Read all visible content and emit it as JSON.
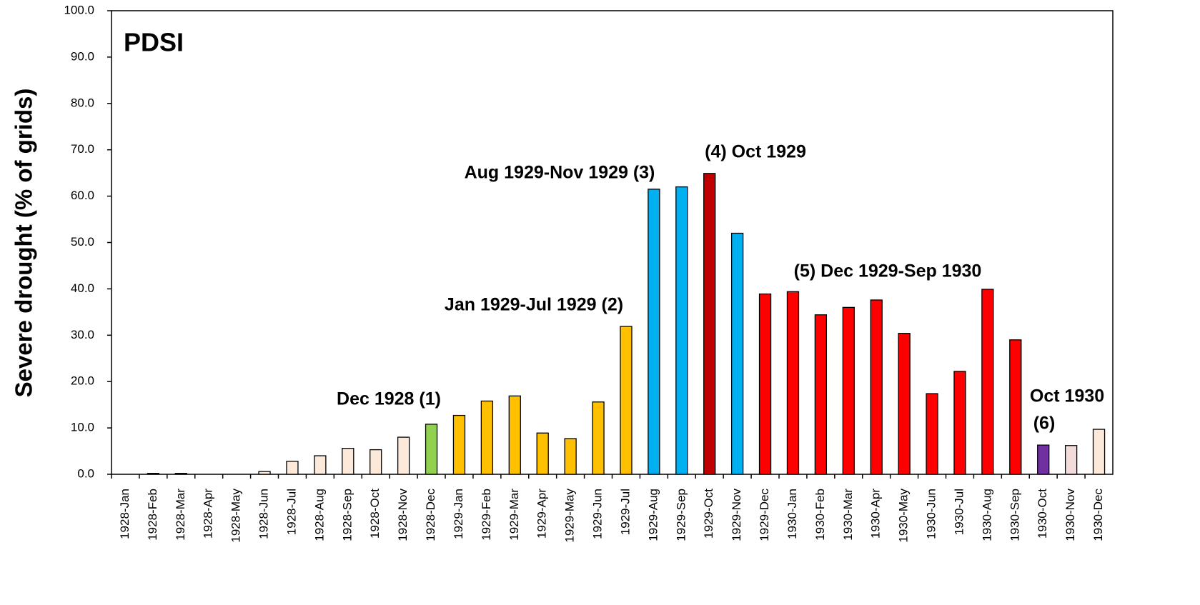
{
  "chart_data": {
    "type": "bar",
    "title": "PDSI",
    "y_label": "Severe drought (% of grids)",
    "categories": [
      "1928-Jan",
      "1928-Feb",
      "1928-Mar",
      "1928-Apr",
      "1928-May",
      "1928-Jun",
      "1928-Jul",
      "1928-Aug",
      "1928-Sep",
      "1928-Oct",
      "1928-Nov",
      "1928-Dec",
      "1929-Jan",
      "1929-Feb",
      "1929-Mar",
      "1929-Apr",
      "1929-May",
      "1929-Jun",
      "1929-Jul",
      "1929-Aug",
      "1929-Sep",
      "1929-Oct",
      "1929-Nov",
      "1929-Dec",
      "1930-Jan",
      "1930-Feb",
      "1930-Mar",
      "1930-Apr",
      "1930-May",
      "1930-Jun",
      "1930-Jul",
      "1930-Aug",
      "1930-Sep",
      "1930-Oct",
      "1930-Nov",
      "1930-Dec"
    ],
    "values": [
      0,
      0.2,
      0.2,
      0,
      0,
      0.6,
      2.8,
      4.0,
      5.6,
      5.3,
      8.0,
      10.8,
      12.7,
      15.8,
      16.9,
      8.9,
      7.7,
      15.6,
      31.9,
      61.5,
      62.0,
      64.9,
      52.0,
      38.9,
      39.4,
      34.4,
      36.0,
      37.6,
      30.4,
      17.4,
      22.2,
      39.9,
      29.0,
      6.3,
      6.2,
      9.7
    ],
    "colors": [
      "#fde9d9",
      "#fde9d9",
      "#fde9d9",
      "#fde9d9",
      "#fde9d9",
      "#fde9d9",
      "#fde9d9",
      "#fde9d9",
      "#fde9d9",
      "#fde9d9",
      "#fde9d9",
      "#92d050",
      "#ffc000",
      "#ffc000",
      "#ffc000",
      "#ffc000",
      "#ffc000",
      "#ffc000",
      "#ffc000",
      "#00b0f0",
      "#00b0f0",
      "#c00000",
      "#00b0f0",
      "#ff0000",
      "#ff0000",
      "#ff0000",
      "#ff0000",
      "#ff0000",
      "#ff0000",
      "#ff0000",
      "#ff0000",
      "#ff0000",
      "#ff0000",
      "#7030a0",
      "#f2dcdb",
      "#fde9d9"
    ],
    "ylim": [
      0,
      100
    ],
    "yticks": [
      {
        "value": 0,
        "label": "0.0"
      },
      {
        "value": 10,
        "label": "10.0"
      },
      {
        "value": 20,
        "label": "20.0"
      },
      {
        "value": 30,
        "label": "30.0"
      },
      {
        "value": 40,
        "label": "40.0"
      },
      {
        "value": 50,
        "label": "50.0"
      },
      {
        "value": 60,
        "label": "60.0"
      },
      {
        "value": 70,
        "label": "70.0"
      },
      {
        "value": 80,
        "label": "80.0"
      },
      {
        "value": 90,
        "label": "90.0"
      },
      {
        "value": 100,
        "label": "100.0"
      }
    ],
    "grid": false,
    "annotations": [
      "Dec 1928 (1)",
      "Jan 1929-Jul 1929 (2)",
      "Aug 1929-Nov 1929 (3)",
      "(4) Oct 1929",
      "(5) Dec 1929-Sep 1930",
      "Oct 1930",
      "(6)"
    ]
  }
}
